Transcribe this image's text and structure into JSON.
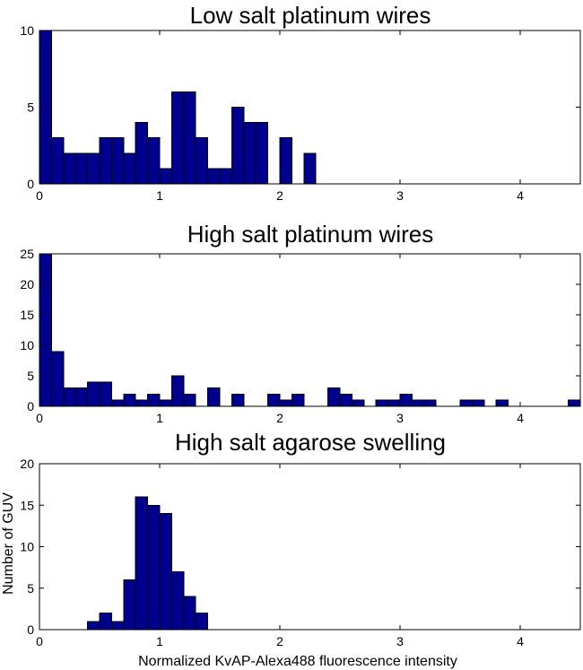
{
  "colors": {
    "bar_fill": "#00008f",
    "bar_edge": "#000000",
    "axis": "#000000",
    "background": "#ffffff"
  },
  "figure": {
    "shared_xlabel": "Normalized KvAP-Alexa488 fluorescence intensity",
    "shared_ylabel": "Number of GUV"
  },
  "chart_data": [
    {
      "type": "bar",
      "title": "Low salt platinum wires",
      "xlabel": "",
      "ylabel": "",
      "xlim": [
        0,
        4.5
      ],
      "ylim": [
        0,
        10
      ],
      "bin_width": 0.1,
      "x_ticks": [
        0,
        1,
        2,
        3,
        4
      ],
      "y_ticks": [
        0,
        5,
        10
      ],
      "bin_centers": [
        0.05,
        0.15,
        0.25,
        0.35,
        0.45,
        0.55,
        0.65,
        0.75,
        0.85,
        0.95,
        1.05,
        1.15,
        1.25,
        1.35,
        1.45,
        1.55,
        1.65,
        1.75,
        1.85,
        1.95,
        2.05,
        2.15,
        2.25
      ],
      "values": [
        10,
        3,
        2,
        2,
        2,
        3,
        3,
        2,
        4,
        3,
        1,
        6,
        6,
        3,
        1,
        1,
        5,
        4,
        4,
        0,
        3,
        0,
        2
      ]
    },
    {
      "type": "bar",
      "title": "High salt platinum wires",
      "xlabel": "",
      "ylabel": "",
      "xlim": [
        0,
        4.5
      ],
      "ylim": [
        0,
        25
      ],
      "bin_width": 0.1,
      "x_ticks": [
        0,
        1,
        2,
        3,
        4
      ],
      "y_ticks": [
        0,
        5,
        10,
        15,
        20,
        25
      ],
      "bin_centers": [
        0.05,
        0.15,
        0.25,
        0.35,
        0.45,
        0.55,
        0.65,
        0.75,
        0.85,
        0.95,
        1.05,
        1.15,
        1.25,
        1.35,
        1.45,
        1.55,
        1.65,
        1.75,
        1.85,
        1.95,
        2.05,
        2.15,
        2.25,
        2.35,
        2.45,
        2.55,
        2.65,
        2.75,
        2.85,
        2.95,
        3.05,
        3.15,
        3.25,
        3.35,
        3.45,
        3.55,
        3.65,
        3.75,
        3.85,
        3.95,
        4.05,
        4.15,
        4.25,
        4.35,
        4.45
      ],
      "values": [
        25,
        9,
        3,
        3,
        4,
        4,
        1,
        2,
        1,
        2,
        1,
        5,
        2,
        0,
        3,
        0,
        2,
        0,
        0,
        2,
        1,
        2,
        0,
        0,
        3,
        2,
        1,
        0,
        1,
        1,
        2,
        1,
        1,
        0,
        0,
        1,
        1,
        0,
        1,
        0,
        0,
        0,
        0,
        0,
        1
      ]
    },
    {
      "type": "bar",
      "title": "High salt agarose swelling",
      "xlabel": "Normalized KvAP-Alexa488 fluorescence intensity",
      "ylabel": "Number of GUV",
      "xlim": [
        0,
        4.5
      ],
      "ylim": [
        0,
        20
      ],
      "bin_width": 0.1,
      "x_ticks": [
        0,
        1,
        2,
        3,
        4
      ],
      "y_ticks": [
        0,
        5,
        10,
        15,
        20
      ],
      "bin_centers": [
        0.45,
        0.55,
        0.65,
        0.75,
        0.85,
        0.95,
        1.05,
        1.15,
        1.25,
        1.35,
        1.45
      ],
      "values": [
        1,
        2,
        1,
        6,
        16,
        15,
        14,
        7,
        4,
        2,
        0
      ]
    }
  ]
}
